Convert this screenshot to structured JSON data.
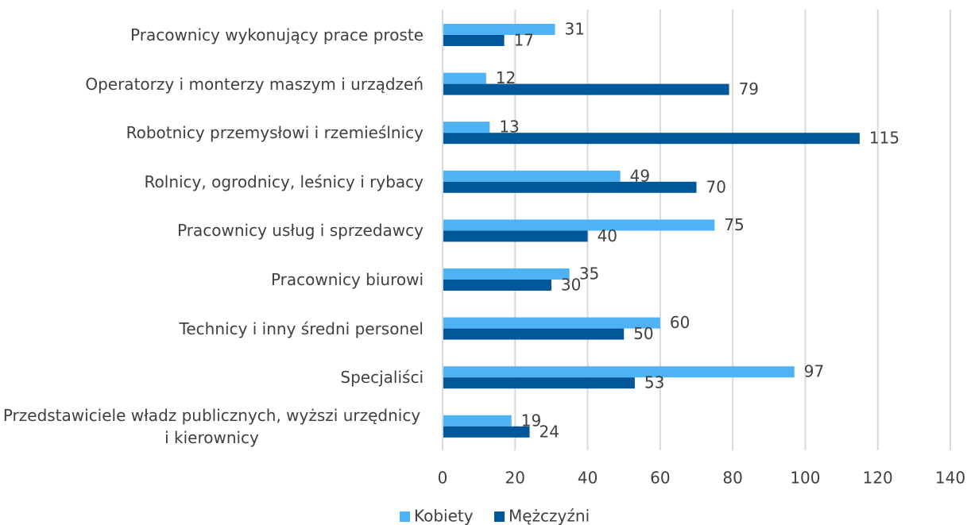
{
  "chart_data": {
    "type": "bar",
    "orientation": "horizontal",
    "categories": [
      "Pracownicy wykonujący prace proste",
      "Operatorzy i monterzy maszym i urządzeń",
      "Robotnicy przemysłowi i rzemieślnicy",
      "Rolnicy, ogrodnicy, leśnicy i rybacy",
      "Pracownicy usług i sprzedawcy",
      "Pracownicy biurowi",
      "Technicy i inny średni personel",
      "Specjaliści",
      "Przedstawiciele władz publicznych, wyższi urzędnicy i kierownicy"
    ],
    "series": [
      {
        "name": "Kobiety",
        "color": "#4db3f5",
        "values": [
          31,
          12,
          13,
          49,
          75,
          35,
          60,
          97,
          19
        ]
      },
      {
        "name": "Mężczyźni",
        "color": "#00579a",
        "values": [
          17,
          79,
          115,
          70,
          40,
          30,
          50,
          53,
          24
        ]
      }
    ],
    "xlim": [
      0,
      140
    ],
    "xticks": [
      0,
      20,
      40,
      60,
      80,
      100,
      120,
      140
    ],
    "grid": true,
    "legend": "bottom"
  }
}
